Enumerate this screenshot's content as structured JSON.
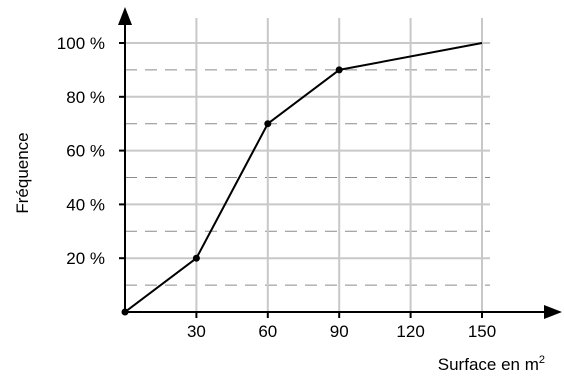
{
  "chart_data": {
    "type": "line",
    "title": "",
    "xlabel": "Surface en m",
    "xlabel_superscript": "2",
    "ylabel": "Fréquence",
    "x": [
      0,
      30,
      60,
      90,
      150
    ],
    "y": [
      0,
      20,
      70,
      90,
      100
    ],
    "markers_shown": [
      true,
      true,
      true,
      true,
      false
    ],
    "xlim": [
      0,
      150
    ],
    "ylim": [
      0,
      100
    ],
    "xticks": [
      30,
      60,
      90,
      120,
      150
    ],
    "xtick_labels": [
      "30",
      "60",
      "90",
      "120",
      "150"
    ],
    "yticks": [
      20,
      40,
      60,
      80,
      100
    ],
    "ytick_labels": [
      "20 %",
      "40 %",
      "60 %",
      "80 %",
      "100 %"
    ],
    "minor_dashed_y": [
      10,
      30,
      50,
      70,
      90
    ],
    "grid": true,
    "legend": "none",
    "colors": {
      "line": "#000000",
      "grid": "#c8c8c8",
      "dashed": "#8a8a8a",
      "axis": "#000000"
    }
  }
}
